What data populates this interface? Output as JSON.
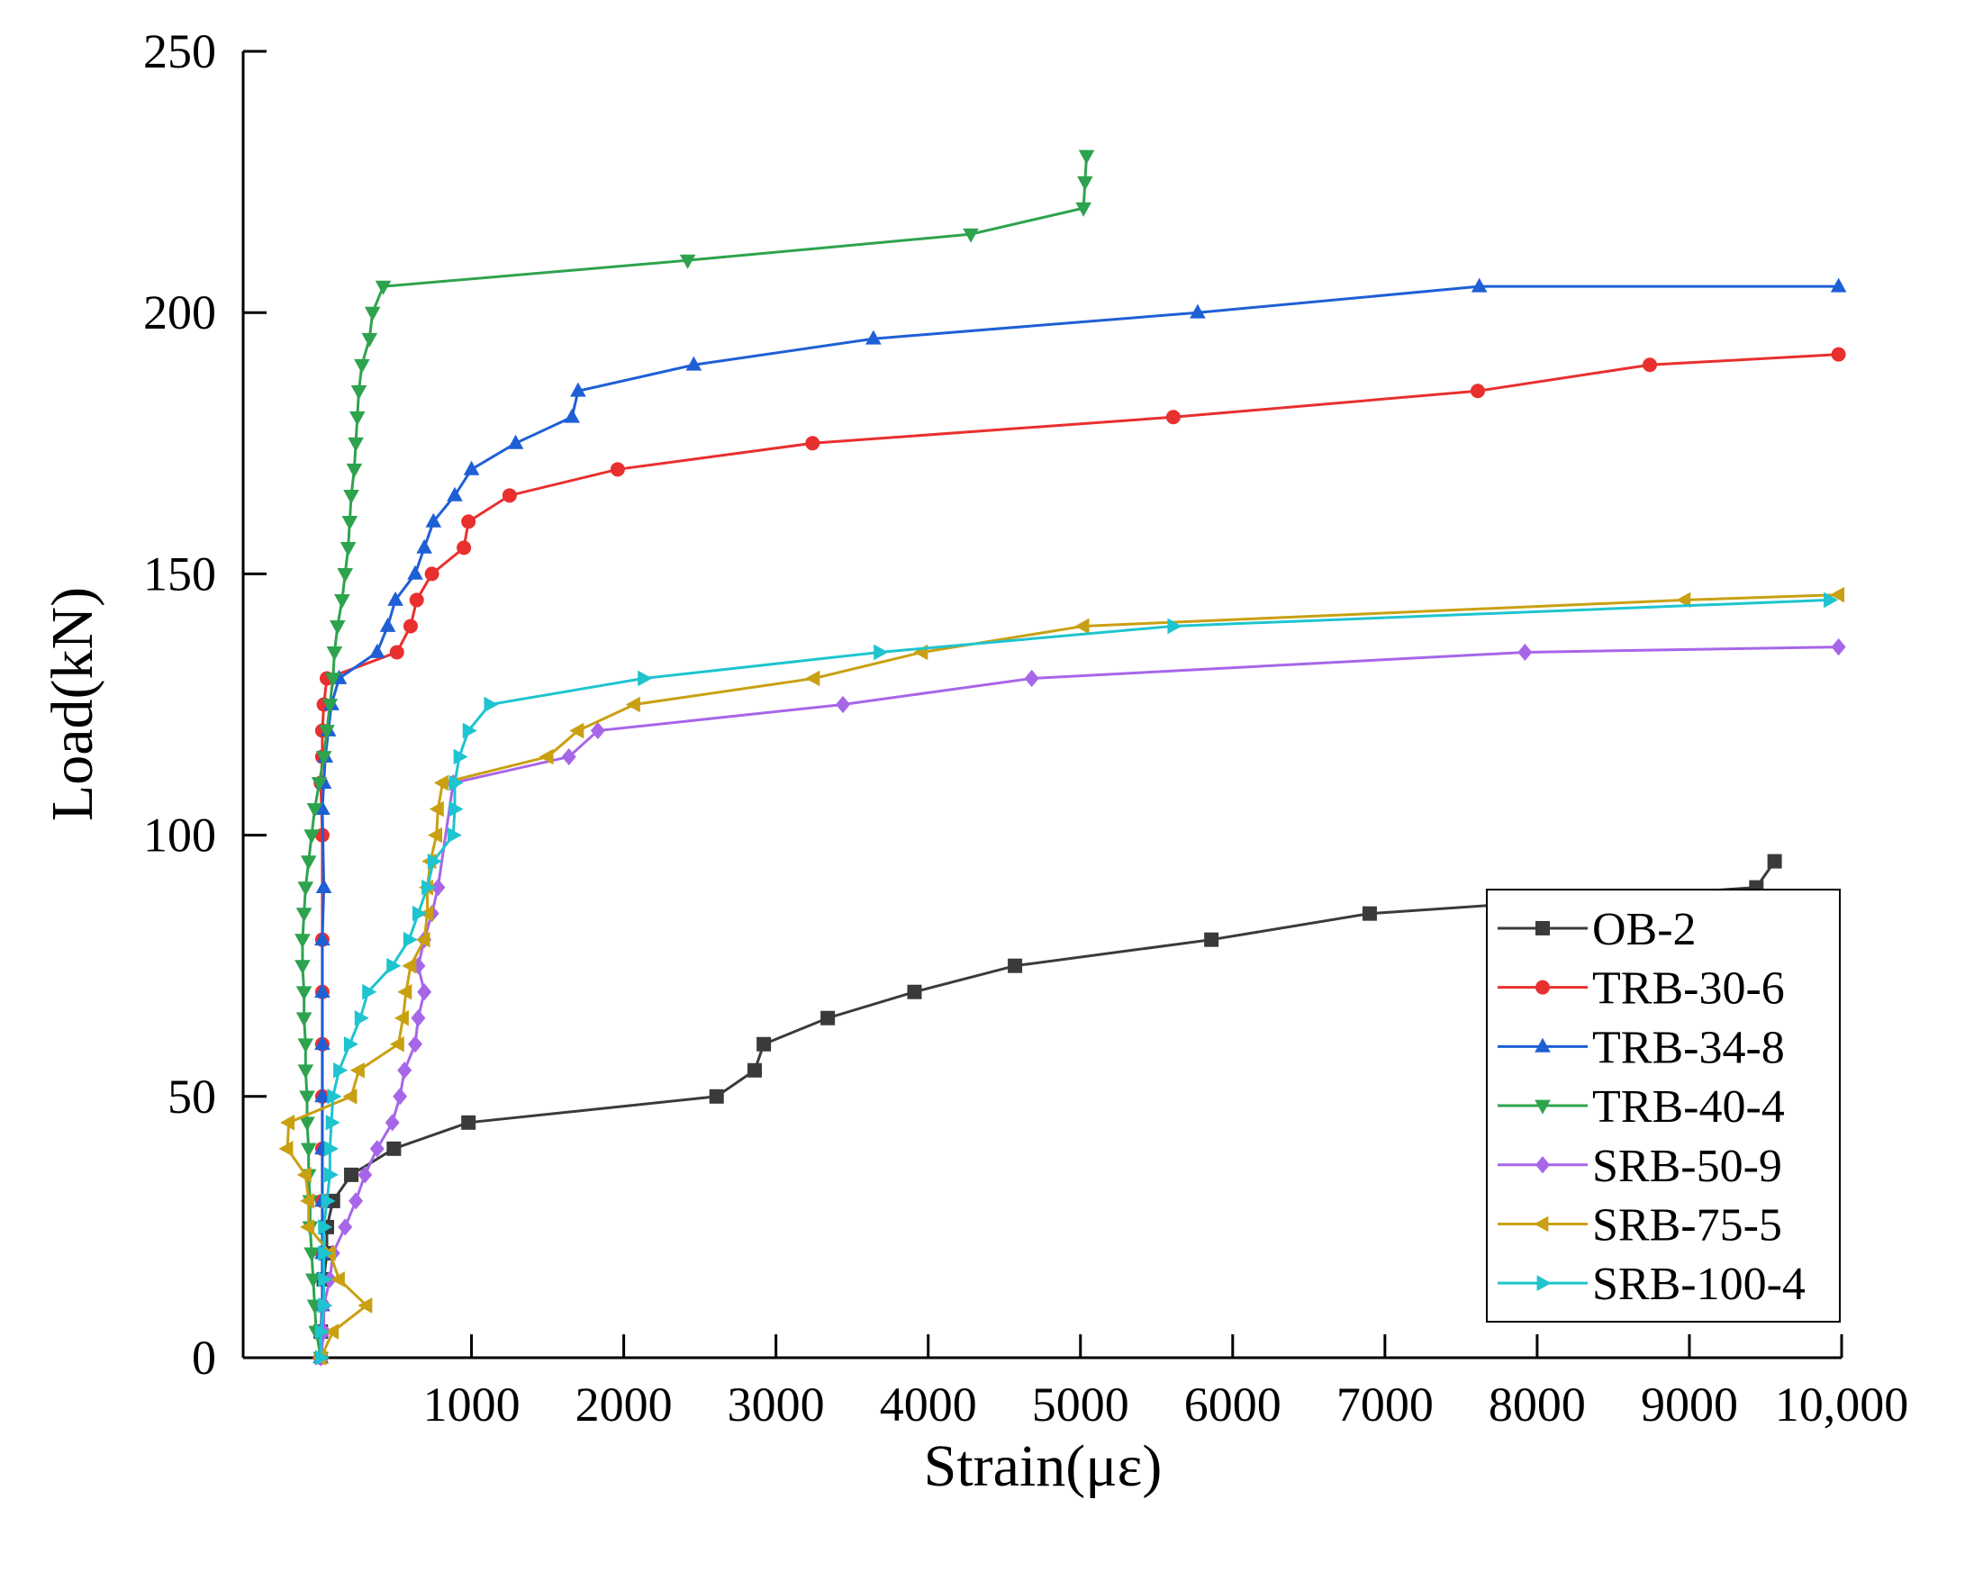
{
  "chart_data": {
    "type": "line",
    "xlabel": "Strain(με)",
    "ylabel": "Load(kN)",
    "xlim": [
      -500,
      10000
    ],
    "ylim": [
      0,
      250
    ],
    "xticks": [
      1000,
      2000,
      3000,
      4000,
      5000,
      6000,
      7000,
      8000,
      9000,
      {
        "value": 10000,
        "label": "10,000"
      }
    ],
    "yticks": [
      0,
      50,
      100,
      150,
      200,
      250
    ],
    "legend": "lower right",
    "series": [
      {
        "name": "OB-2",
        "color": "#3a3a3a",
        "marker": "square",
        "x": [
          10,
          30,
          50,
          50,
          90,
          210,
          490,
          980,
          2610,
          2860,
          2920,
          3340,
          3910,
          4570,
          5860,
          6900,
          9440,
          9560
        ],
        "values": [
          5,
          15,
          20,
          25,
          30,
          35,
          40,
          45,
          50,
          55,
          60,
          65,
          70,
          75,
          80,
          85,
          90,
          95
        ]
      },
      {
        "name": "TRB-30-6",
        "color": "#e8302f",
        "marker": "circle",
        "x": [
          10,
          20,
          20,
          20,
          20,
          20,
          20,
          20,
          20,
          20,
          20,
          10,
          20,
          20,
          30,
          50,
          510,
          600,
          640,
          740,
          950,
          980,
          1250,
          1960,
          3240,
          5610,
          7610,
          8740,
          9980
        ],
        "values": [
          0,
          5,
          10,
          20,
          30,
          40,
          50,
          60,
          70,
          80,
          100,
          110,
          115,
          120,
          125,
          130,
          135,
          140,
          145,
          150,
          155,
          160,
          165,
          170,
          175,
          180,
          185,
          190,
          192
        ]
      },
      {
        "name": "TRB-34-8",
        "color": "#1f5fd6",
        "marker": "triangle-up",
        "x": [
          10,
          10,
          20,
          20,
          20,
          20,
          20,
          20,
          20,
          20,
          30,
          20,
          30,
          40,
          60,
          80,
          130,
          380,
          450,
          500,
          630,
          690,
          750,
          890,
          1000,
          1290,
          1660,
          1700,
          2460,
          3640,
          5770,
          7620,
          9980
        ],
        "values": [
          0,
          5,
          10,
          20,
          30,
          40,
          50,
          60,
          70,
          80,
          90,
          105,
          110,
          115,
          120,
          125,
          130,
          135,
          140,
          145,
          150,
          155,
          160,
          165,
          170,
          175,
          180,
          185,
          190,
          195,
          200,
          205,
          205
        ]
      },
      {
        "name": "TRB-40-4",
        "color": "#2ea34e",
        "marker": "triangle-down",
        "x": [
          10,
          -20,
          -30,
          -40,
          -50,
          -60,
          -60,
          -70,
          -70,
          -80,
          -80,
          -90,
          -90,
          -100,
          -100,
          -110,
          -110,
          -100,
          -90,
          -70,
          -50,
          -30,
          0,
          30,
          50,
          70,
          90,
          100,
          120,
          150,
          170,
          190,
          200,
          210,
          230,
          240,
          250,
          260,
          280,
          330,
          350,
          420,
          2420,
          4280,
          5020,
          5030,
          5040
        ],
        "values": [
          0,
          5,
          10,
          15,
          20,
          25,
          30,
          35,
          40,
          45,
          50,
          55,
          60,
          65,
          70,
          75,
          80,
          85,
          90,
          95,
          100,
          105,
          110,
          115,
          120,
          125,
          130,
          135,
          140,
          145,
          150,
          155,
          160,
          165,
          170,
          175,
          180,
          185,
          190,
          195,
          200,
          205,
          210,
          215,
          220,
          225,
          230
        ]
      },
      {
        "name": "SRB-50-9",
        "color": "#a766e8",
        "marker": "diamond",
        "x": [
          10,
          30,
          30,
          70,
          90,
          170,
          240,
          300,
          380,
          480,
          530,
          560,
          630,
          650,
          690,
          650,
          690,
          740,
          780,
          880,
          1640,
          1830,
          3440,
          4680,
          7920,
          9980
        ],
        "values": [
          0,
          5,
          10,
          15,
          20,
          25,
          30,
          35,
          40,
          45,
          50,
          55,
          60,
          65,
          70,
          75,
          80,
          85,
          90,
          110,
          115,
          120,
          125,
          130,
          135,
          136
        ]
      },
      {
        "name": "SRB-75-5",
        "color": "#c9a012",
        "marker": "triangle-left",
        "x": [
          10,
          90,
          310,
          130,
          70,
          -70,
          -70,
          -90,
          -210,
          -200,
          210,
          260,
          520,
          550,
          570,
          600,
          690,
          710,
          710,
          730,
          770,
          780,
          810,
          1500,
          1700,
          2070,
          3250,
          3960,
          5020,
          8970,
          9980
        ],
        "values": [
          0,
          5,
          10,
          15,
          20,
          25,
          30,
          35,
          40,
          45,
          50,
          55,
          60,
          65,
          70,
          75,
          80,
          85,
          90,
          95,
          100,
          105,
          110,
          115,
          120,
          125,
          130,
          135,
          140,
          145,
          146
        ]
      },
      {
        "name": "SRB-100-4",
        "color": "#1ec4cf",
        "marker": "triangle-right",
        "x": [
          10,
          10,
          30,
          30,
          30,
          30,
          50,
          70,
          70,
          80,
          90,
          130,
          200,
          270,
          320,
          480,
          590,
          650,
          710,
          750,
          880,
          890,
          890,
          920,
          980,
          1120,
          2130,
          3680,
          5610,
          9920
        ],
        "values": [
          0,
          5,
          10,
          15,
          20,
          25,
          30,
          35,
          40,
          45,
          50,
          55,
          60,
          65,
          70,
          75,
          80,
          85,
          90,
          95,
          100,
          105,
          110,
          115,
          120,
          125,
          130,
          135,
          140,
          145
        ]
      }
    ]
  }
}
